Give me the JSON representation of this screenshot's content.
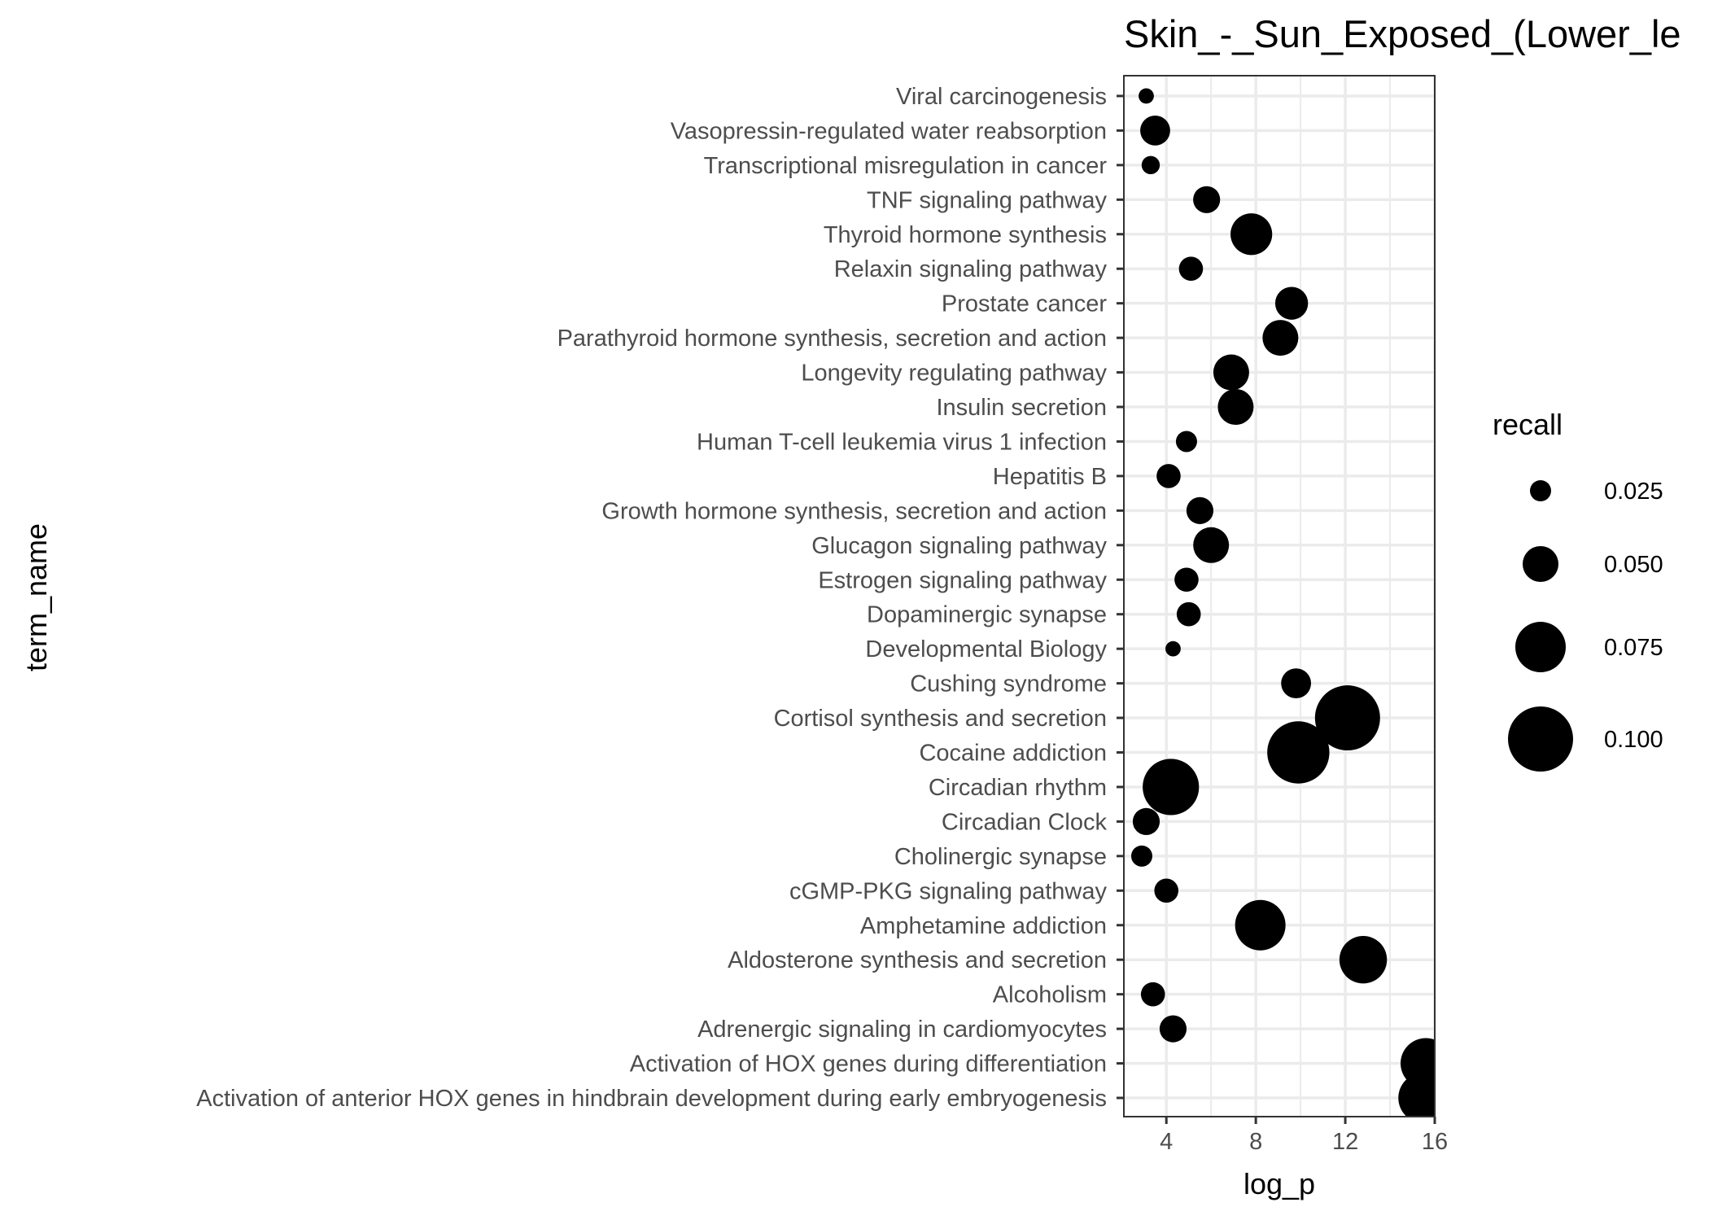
{
  "chart_data": {
    "type": "scatter",
    "title": "Skin_-_Sun_Exposed_(Lower_le",
    "xlabel": "log_p",
    "ylabel": "term_name",
    "xlim": [
      2.1,
      16.0
    ],
    "x_ticks": [
      4,
      8,
      12,
      16
    ],
    "grid": true,
    "legend_position": "right",
    "size_variable": "recall",
    "colors": {
      "point": "#000000",
      "grid": "#ebebeb",
      "panel_border": "#333333",
      "tick_text": "#4d4d4d"
    },
    "categories": [
      "Activation of anterior HOX genes in hindbrain development during early embryogenesis",
      "Activation of HOX genes during differentiation",
      "Adrenergic signaling in cardiomyocytes",
      "Alcoholism",
      "Aldosterone synthesis and secretion",
      "Amphetamine addiction",
      "cGMP-PKG signaling pathway",
      "Cholinergic synapse",
      "Circadian Clock",
      "Circadian rhythm",
      "Cocaine addiction",
      "Cortisol synthesis and secretion",
      "Cushing syndrome",
      "Developmental Biology",
      "Dopaminergic synapse",
      "Estrogen signaling pathway",
      "Glucagon signaling pathway",
      "Growth hormone synthesis, secretion and action",
      "Hepatitis B",
      "Human T-cell leukemia virus 1 infection",
      "Insulin secretion",
      "Longevity regulating pathway",
      "Parathyroid hormone synthesis, secretion and action",
      "Prostate cancer",
      "Relaxin signaling pathway",
      "Thyroid hormone synthesis",
      "TNF signaling pathway",
      "Transcriptional misregulation in cancer",
      "Vasopressin-regulated water reabsorption",
      "Viral carcinogenesis"
    ],
    "points": [
      {
        "term": "Activation of anterior HOX genes in hindbrain development during early embryogenesis",
        "log_p": 15.5,
        "recall": 0.075
      },
      {
        "term": "Activation of HOX genes during differentiation",
        "log_p": 15.6,
        "recall": 0.075
      },
      {
        "term": "Adrenergic signaling in cardiomyocytes",
        "log_p": 4.3,
        "recall": 0.035
      },
      {
        "term": "Alcoholism",
        "log_p": 3.4,
        "recall": 0.03
      },
      {
        "term": "Aldosterone synthesis and secretion",
        "log_p": 12.8,
        "recall": 0.07
      },
      {
        "term": "Amphetamine addiction",
        "log_p": 8.2,
        "recall": 0.075
      },
      {
        "term": "cGMP-PKG signaling pathway",
        "log_p": 4.0,
        "recall": 0.03
      },
      {
        "term": "Cholinergic synapse",
        "log_p": 2.9,
        "recall": 0.025
      },
      {
        "term": "Circadian Clock",
        "log_p": 3.1,
        "recall": 0.035
      },
      {
        "term": "Circadian rhythm",
        "log_p": 4.2,
        "recall": 0.085
      },
      {
        "term": "Cocaine addiction",
        "log_p": 9.9,
        "recall": 0.095
      },
      {
        "term": "Cortisol synthesis and secretion",
        "log_p": 12.1,
        "recall": 0.1
      },
      {
        "term": "Cushing syndrome",
        "log_p": 9.8,
        "recall": 0.04
      },
      {
        "term": "Developmental Biology",
        "log_p": 4.3,
        "recall": 0.015
      },
      {
        "term": "Dopaminergic synapse",
        "log_p": 5.0,
        "recall": 0.03
      },
      {
        "term": "Estrogen signaling pathway",
        "log_p": 4.9,
        "recall": 0.03
      },
      {
        "term": "Glucagon signaling pathway",
        "log_p": 6.0,
        "recall": 0.05
      },
      {
        "term": "Growth hormone synthesis, secretion and action",
        "log_p": 5.5,
        "recall": 0.035
      },
      {
        "term": "Hepatitis B",
        "log_p": 4.1,
        "recall": 0.03
      },
      {
        "term": "Human T-cell leukemia virus 1 infection",
        "log_p": 4.9,
        "recall": 0.025
      },
      {
        "term": "Insulin secretion",
        "log_p": 7.1,
        "recall": 0.05
      },
      {
        "term": "Longevity regulating pathway",
        "log_p": 6.9,
        "recall": 0.05
      },
      {
        "term": "Parathyroid hormone synthesis, secretion and action",
        "log_p": 9.1,
        "recall": 0.05
      },
      {
        "term": "Prostate cancer",
        "log_p": 9.6,
        "recall": 0.045
      },
      {
        "term": "Relaxin signaling pathway",
        "log_p": 5.1,
        "recall": 0.03
      },
      {
        "term": "Thyroid hormone synthesis",
        "log_p": 7.8,
        "recall": 0.06
      },
      {
        "term": "TNF signaling pathway",
        "log_p": 5.8,
        "recall": 0.035
      },
      {
        "term": "Transcriptional misregulation in cancer",
        "log_p": 3.3,
        "recall": 0.02
      },
      {
        "term": "Vasopressin-regulated water reabsorption",
        "log_p": 3.5,
        "recall": 0.04
      },
      {
        "term": "Viral carcinogenesis",
        "log_p": 3.1,
        "recall": 0.015
      }
    ],
    "legend": {
      "title": "recall",
      "entries": [
        {
          "label": "0.025",
          "recall": 0.025
        },
        {
          "label": "0.050",
          "recall": 0.05
        },
        {
          "label": "0.075",
          "recall": 0.075
        },
        {
          "label": "0.100",
          "recall": 0.1
        }
      ]
    }
  }
}
